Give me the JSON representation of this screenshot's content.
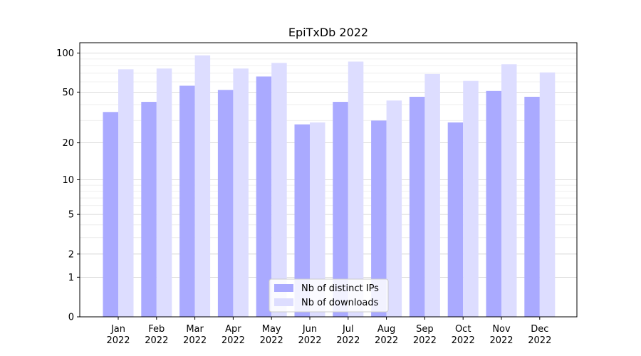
{
  "chart_data": {
    "type": "bar",
    "title": "EpiTxDb 2022",
    "xlabel": "",
    "ylabel": "",
    "y_scale": "log(1+y)",
    "ylim": [
      0,
      120
    ],
    "y_ticks": [
      0,
      1,
      2,
      5,
      10,
      20,
      50,
      100
    ],
    "grid": "horizontal",
    "legend_position": "bottom-center",
    "categories": [
      [
        "Jan",
        "2022"
      ],
      [
        "Feb",
        "2022"
      ],
      [
        "Mar",
        "2022"
      ],
      [
        "Apr",
        "2022"
      ],
      [
        "May",
        "2022"
      ],
      [
        "Jun",
        "2022"
      ],
      [
        "Jul",
        "2022"
      ],
      [
        "Aug",
        "2022"
      ],
      [
        "Sep",
        "2022"
      ],
      [
        "Oct",
        "2022"
      ],
      [
        "Nov",
        "2022"
      ],
      [
        "Dec",
        "2022"
      ]
    ],
    "series": [
      {
        "name": "Nb of distinct IPs",
        "color": "#aaaaff",
        "values": [
          35,
          42,
          56,
          52,
          66,
          28,
          42,
          30,
          46,
          29,
          51,
          46
        ]
      },
      {
        "name": "Nb of downloads",
        "color": "#ddddff",
        "values": [
          75,
          76,
          96,
          76,
          84,
          29,
          86,
          43,
          69,
          61,
          82,
          71
        ]
      }
    ]
  }
}
